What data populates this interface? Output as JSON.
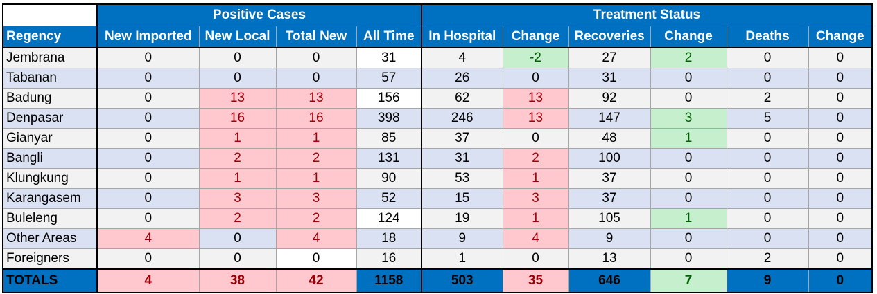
{
  "group_headers": {
    "positive": "Positive Cases",
    "treatment": "Treatment Status"
  },
  "columns": [
    "Regency",
    "New Imported",
    "New Local",
    "Total New",
    "All Time",
    "In Hospital",
    "Change",
    "Recoveries",
    "Change",
    "Deaths",
    "Change"
  ],
  "rows": [
    [
      "Jembrana",
      "0",
      "0",
      "0",
      "31",
      "4",
      "-2",
      "27",
      "2",
      "0",
      "0"
    ],
    [
      "Tabanan",
      "0",
      "0",
      "0",
      "57",
      "26",
      "0",
      "31",
      "0",
      "0",
      "0"
    ],
    [
      "Badung",
      "0",
      "13",
      "13",
      "156",
      "62",
      "13",
      "92",
      "0",
      "2",
      "0"
    ],
    [
      "Denpasar",
      "0",
      "16",
      "16",
      "398",
      "246",
      "13",
      "147",
      "3",
      "5",
      "0"
    ],
    [
      "Gianyar",
      "0",
      "1",
      "1",
      "85",
      "37",
      "0",
      "48",
      "1",
      "0",
      "0"
    ],
    [
      "Bangli",
      "0",
      "2",
      "2",
      "131",
      "31",
      "2",
      "100",
      "0",
      "0",
      "0"
    ],
    [
      "Klungkung",
      "0",
      "1",
      "1",
      "90",
      "53",
      "1",
      "37",
      "0",
      "0",
      "0"
    ],
    [
      "Karangasem",
      "0",
      "3",
      "3",
      "52",
      "15",
      "3",
      "37",
      "0",
      "0",
      "0"
    ],
    [
      "Buleleng",
      "0",
      "2",
      "2",
      "124",
      "19",
      "1",
      "105",
      "1",
      "0",
      "0"
    ],
    [
      "Other Areas",
      "4",
      "0",
      "4",
      "18",
      "9",
      "4",
      "9",
      "0",
      "0",
      "0"
    ],
    [
      "Foreigners",
      "0",
      "0",
      "0",
      "16",
      "1",
      "0",
      "13",
      "0",
      "2",
      "0"
    ]
  ],
  "totals": [
    "TOTALS",
    "4",
    "38",
    "42",
    "1158",
    "503",
    "35",
    "646",
    "7",
    "9",
    "0"
  ],
  "colors": {
    "header_blue": "#0070c0",
    "increase_fill": "#ffc7ce",
    "increase_text": "#9c0006",
    "decrease_fill": "#c6efce",
    "decrease_text": "#006100"
  }
}
